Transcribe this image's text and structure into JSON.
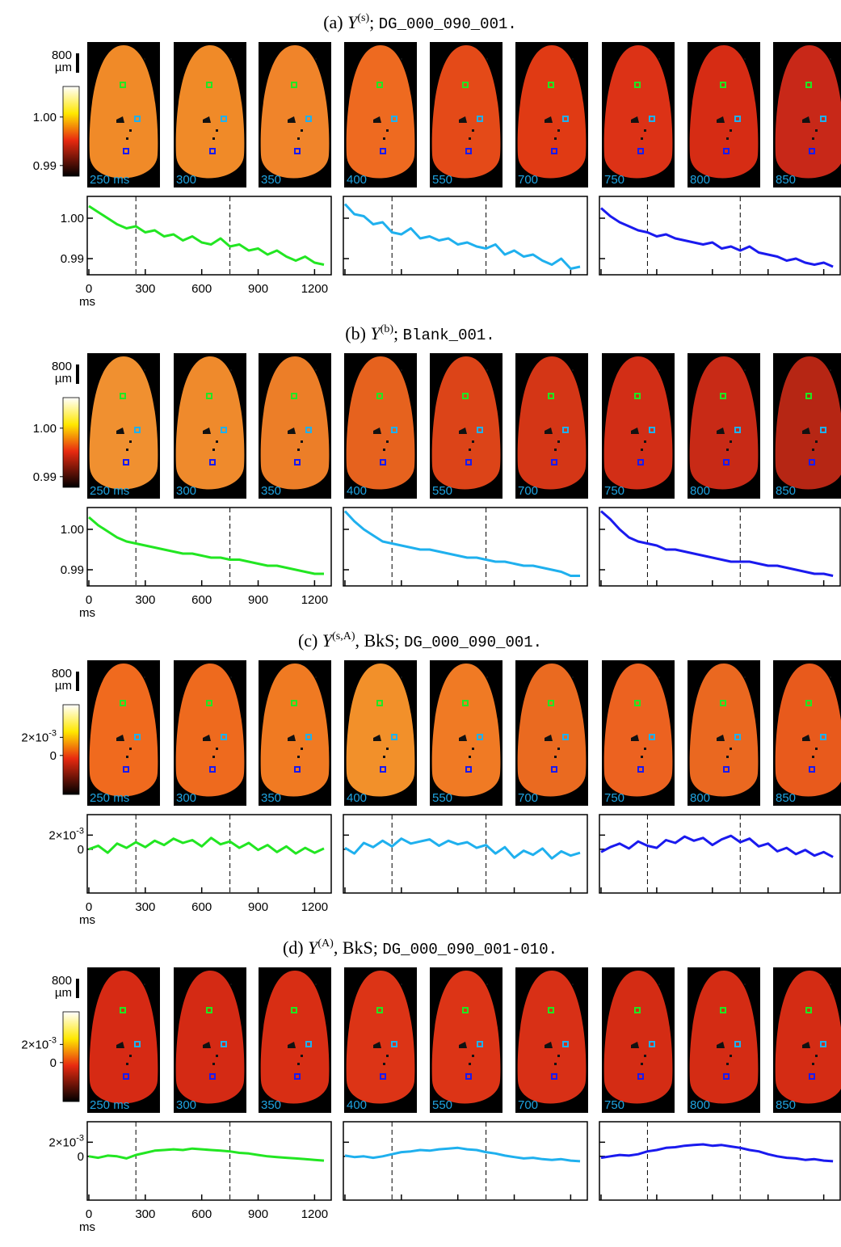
{
  "frame_labels": [
    "250 ms",
    "300",
    "350",
    "400",
    "550",
    "700",
    "750",
    "800",
    "850"
  ],
  "scale_bar": {
    "value": "800",
    "unit": "µm"
  },
  "x": [
    0,
    50,
    100,
    150,
    200,
    250,
    300,
    350,
    400,
    450,
    500,
    550,
    600,
    650,
    700,
    750,
    800,
    850,
    900,
    950,
    1000,
    1050,
    1100,
    1150,
    1200,
    1250
  ],
  "xlim": [
    0,
    1280
  ],
  "xticks": [
    0,
    300,
    600,
    900,
    1200
  ],
  "xlabel": "ms",
  "vlines": [
    250,
    750
  ],
  "series_colors": [
    "#22e622",
    "#1fb0ee",
    "#1a1aee"
  ],
  "panels": [
    {
      "title": {
        "label": "(a) ",
        "symbol": "Y",
        "sup": "(s)",
        "mid": ";  ",
        "file": "DG_000_090_001."
      },
      "frame_colors": [
        "#f08a28",
        "#f08a28",
        "#f0842a",
        "#ee6a20",
        "#e44a18",
        "#e03a14",
        "#dc3216",
        "#d62c14",
        "#c82818"
      ],
      "colorbar_lim": [
        0.9878,
        1.0063
      ],
      "colorbar_ticks": [
        {
          "value": 1.0,
          "label": "1.00"
        },
        {
          "value": 0.99,
          "label": "0.99"
        }
      ],
      "ylim": [
        0.986,
        1.0054
      ],
      "yticks": [
        {
          "value": 1.0,
          "label": "1.00"
        },
        {
          "value": 0.99,
          "label": "0.99"
        }
      ],
      "series": [
        {
          "values": [
            1.003,
            1.0015,
            1.0,
            0.9985,
            0.9975,
            0.998,
            0.9965,
            0.997,
            0.9955,
            0.996,
            0.9945,
            0.9955,
            0.994,
            0.9935,
            0.995,
            0.993,
            0.9935,
            0.992,
            0.9925,
            0.991,
            0.992,
            0.9905,
            0.9895,
            0.9905,
            0.989,
            0.9885
          ]
        },
        {
          "values": [
            1.0035,
            1.001,
            1.0005,
            0.9985,
            0.999,
            0.9965,
            0.996,
            0.9975,
            0.995,
            0.9955,
            0.9945,
            0.995,
            0.9935,
            0.994,
            0.993,
            0.9925,
            0.9935,
            0.991,
            0.992,
            0.9905,
            0.991,
            0.9895,
            0.9885,
            0.99,
            0.9875,
            0.988
          ]
        },
        {
          "values": [
            1.0025,
            1.0005,
            0.999,
            0.998,
            0.997,
            0.9965,
            0.9955,
            0.996,
            0.995,
            0.9945,
            0.994,
            0.9935,
            0.994,
            0.9925,
            0.993,
            0.992,
            0.993,
            0.9915,
            0.991,
            0.9905,
            0.9895,
            0.99,
            0.989,
            0.9885,
            0.989,
            0.988
          ]
        }
      ]
    },
    {
      "title": {
        "label": "(b) ",
        "symbol": "Υ",
        "sup": "(b)",
        "mid": ";  ",
        "file": "Blank_001."
      },
      "frame_colors": [
        "#f09030",
        "#ef8a2c",
        "#ec7e28",
        "#e6621e",
        "#dc4418",
        "#d43616",
        "#d22e16",
        "#c82a16",
        "#b62614"
      ],
      "colorbar_lim": [
        0.9878,
        1.0063
      ],
      "colorbar_ticks": [
        {
          "value": 1.0,
          "label": "1.00"
        },
        {
          "value": 0.99,
          "label": "0.99"
        }
      ],
      "ylim": [
        0.986,
        1.0054
      ],
      "yticks": [
        {
          "value": 1.0,
          "label": "1.00"
        },
        {
          "value": 0.99,
          "label": "0.99"
        }
      ],
      "series": [
        {
          "values": [
            1.003,
            1.001,
            0.9995,
            0.998,
            0.997,
            0.9965,
            0.996,
            0.9955,
            0.995,
            0.9945,
            0.994,
            0.994,
            0.9935,
            0.993,
            0.993,
            0.9925,
            0.9925,
            0.992,
            0.9915,
            0.991,
            0.991,
            0.9905,
            0.99,
            0.9895,
            0.989,
            0.989
          ]
        },
        {
          "values": [
            1.0045,
            1.002,
            1.0,
            0.9985,
            0.997,
            0.9965,
            0.996,
            0.9955,
            0.995,
            0.995,
            0.9945,
            0.994,
            0.9935,
            0.993,
            0.993,
            0.9925,
            0.992,
            0.992,
            0.9915,
            0.991,
            0.991,
            0.9905,
            0.99,
            0.9895,
            0.9885,
            0.9885
          ]
        },
        {
          "values": [
            1.0045,
            1.0025,
            1.0,
            0.998,
            0.997,
            0.9965,
            0.996,
            0.995,
            0.995,
            0.9945,
            0.994,
            0.9935,
            0.993,
            0.9925,
            0.992,
            0.992,
            0.992,
            0.9915,
            0.991,
            0.991,
            0.9905,
            0.99,
            0.9895,
            0.989,
            0.989,
            0.9885
          ]
        }
      ]
    },
    {
      "title": {
        "label": "(c) ",
        "symbol": "Y",
        "sup": "(s,A)",
        "mid": ", BkS;  ",
        "file": "DG_000_090_001."
      },
      "frame_colors": [
        "#f06a1e",
        "#ee6a1e",
        "#f07a22",
        "#f2902a",
        "#f07a24",
        "#ea6a20",
        "#ec6220",
        "#ea6820",
        "#e85a1c"
      ],
      "colorbar_lim": [
        -0.0043,
        0.0056
      ],
      "colorbar_ticks": [
        {
          "value": 0.002,
          "label": "2×10",
          "exp": "-3"
        },
        {
          "value": 0,
          "label": "0"
        }
      ],
      "ylim": [
        -0.0062,
        0.0049
      ],
      "yticks": [
        {
          "value": 0.002,
          "label": "2×10",
          "exp": "-3"
        },
        {
          "value": 0,
          "label": "0"
        }
      ],
      "series": [
        {
          "values": [
            0,
            0.0005,
            -0.0005,
            0.0008,
            0.0002,
            0.001,
            0.0003,
            0.0012,
            0.0006,
            0.0015,
            0.0009,
            0.0013,
            0.0004,
            0.0016,
            0.0007,
            0.0011,
            0.0002,
            0.0009,
            -0.0001,
            0.0006,
            -0.0004,
            0.0004,
            -0.0006,
            0.0002,
            -0.0005,
            0.0001
          ]
        },
        {
          "values": [
            0.0002,
            -0.0006,
            0.0009,
            0.0003,
            0.0012,
            0.0004,
            0.0015,
            0.0008,
            0.0011,
            0.0014,
            0.0005,
            0.0012,
            0.0007,
            0.001,
            0.0002,
            0.0006,
            -0.0006,
            0.0003,
            -0.0012,
            -0.0002,
            -0.0008,
            0.0001,
            -0.0013,
            -0.0003,
            -0.0009,
            -0.0005
          ]
        },
        {
          "values": [
            -0.0004,
            0.0003,
            0.0008,
            0.0001,
            0.0011,
            0.0005,
            0.0002,
            0.0013,
            0.0009,
            0.0018,
            0.0012,
            0.0016,
            0.0006,
            0.0014,
            0.0019,
            0.001,
            0.0015,
            0.0004,
            0.0008,
            -0.0003,
            0.0002,
            -0.0007,
            -0.0001,
            -0.0009,
            -0.0004,
            -0.0011
          ]
        }
      ]
    },
    {
      "title": {
        "label": "(d) ",
        "symbol": "Y",
        "sup": "(A)",
        "mid": ", BkS;  ",
        "file": "DG_000_090_001-010."
      },
      "frame_colors": [
        "#d62a14",
        "#d42a14",
        "#d82e14",
        "#dc3416",
        "#dc3416",
        "#d83016",
        "#d42c14",
        "#d42c14",
        "#d42c14"
      ],
      "colorbar_lim": [
        -0.0043,
        0.0056
      ],
      "colorbar_ticks": [
        {
          "value": 0.002,
          "label": "2×10",
          "exp": "-3"
        },
        {
          "value": 0,
          "label": "0"
        }
      ],
      "ylim": [
        -0.0062,
        0.0049
      ],
      "yticks": [
        {
          "value": 0.002,
          "label": "2×10",
          "exp": "-3"
        },
        {
          "value": 0,
          "label": "0"
        }
      ],
      "series": [
        {
          "values": [
            0,
            -0.0002,
            0.0001,
            0,
            -0.0003,
            0.0002,
            0.0005,
            0.0008,
            0.0009,
            0.001,
            0.0009,
            0.0011,
            0.001,
            0.0009,
            0.0008,
            0.0007,
            0.0005,
            0.0004,
            0.0002,
            0,
            -0.0001,
            -0.0002,
            -0.0003,
            -0.0004,
            -0.0005,
            -0.0006
          ]
        },
        {
          "values": [
            0.0001,
            -0.0001,
            0,
            -0.0002,
            0,
            0.0003,
            0.0006,
            0.0007,
            0.0009,
            0.0008,
            0.001,
            0.0011,
            0.0012,
            0.001,
            0.0009,
            0.0006,
            0.0004,
            0.0001,
            -0.0001,
            -0.0003,
            -0.0002,
            -0.0004,
            -0.0005,
            -0.0004,
            -0.0006,
            -0.0007
          ]
        },
        {
          "values": [
            -0.0002,
            0,
            0.0002,
            0.0001,
            0.0003,
            0.0007,
            0.0009,
            0.0012,
            0.0013,
            0.0015,
            0.0016,
            0.0017,
            0.0015,
            0.0016,
            0.0014,
            0.0012,
            0.0009,
            0.0007,
            0.0003,
            0,
            -0.0002,
            -0.0003,
            -0.0005,
            -0.0004,
            -0.0006,
            -0.0007
          ]
        }
      ]
    }
  ]
}
